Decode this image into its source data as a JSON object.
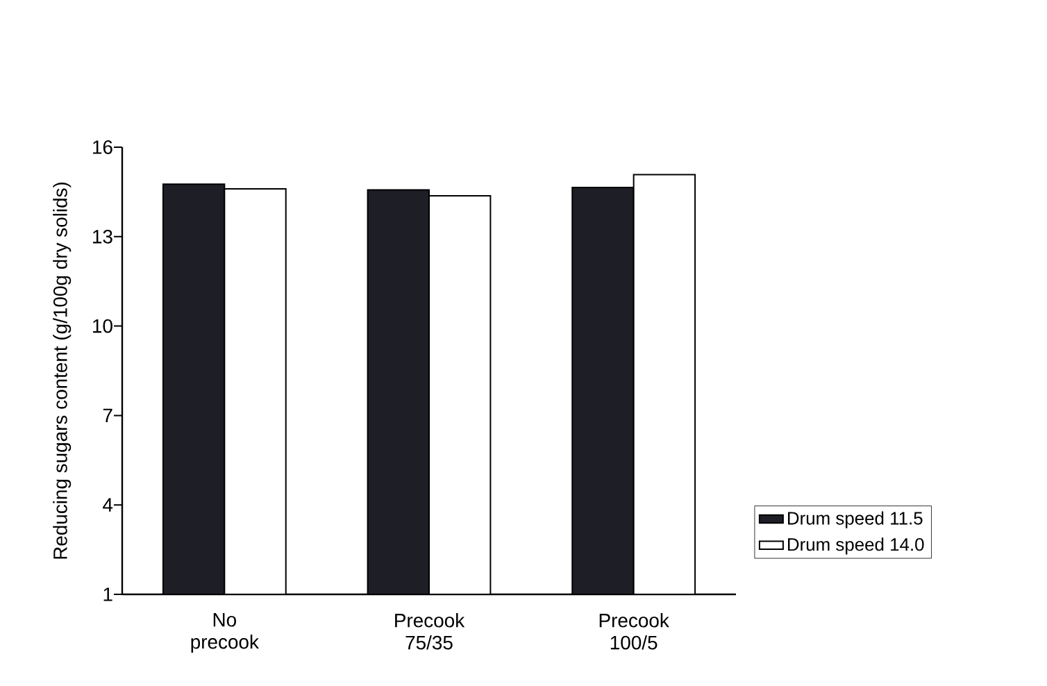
{
  "chart_data": {
    "type": "bar",
    "ylabel": "Reducing sugars content (g/100g dry solids)",
    "categories": [
      "No precook",
      "Precook 75/35",
      "Precook 100/5"
    ],
    "series": [
      {
        "name": "Drum speed 11.5",
        "color": "#1e1e26",
        "values": [
          14.76,
          14.57,
          14.65
        ]
      },
      {
        "name": "Drum speed 14.0",
        "color": "#ffffff",
        "values": [
          14.6,
          14.37,
          15.08
        ]
      }
    ],
    "ylim": [
      1,
      16
    ],
    "yticks": [
      1,
      4,
      7,
      10,
      13,
      16
    ],
    "grid": false,
    "legend": "right"
  }
}
